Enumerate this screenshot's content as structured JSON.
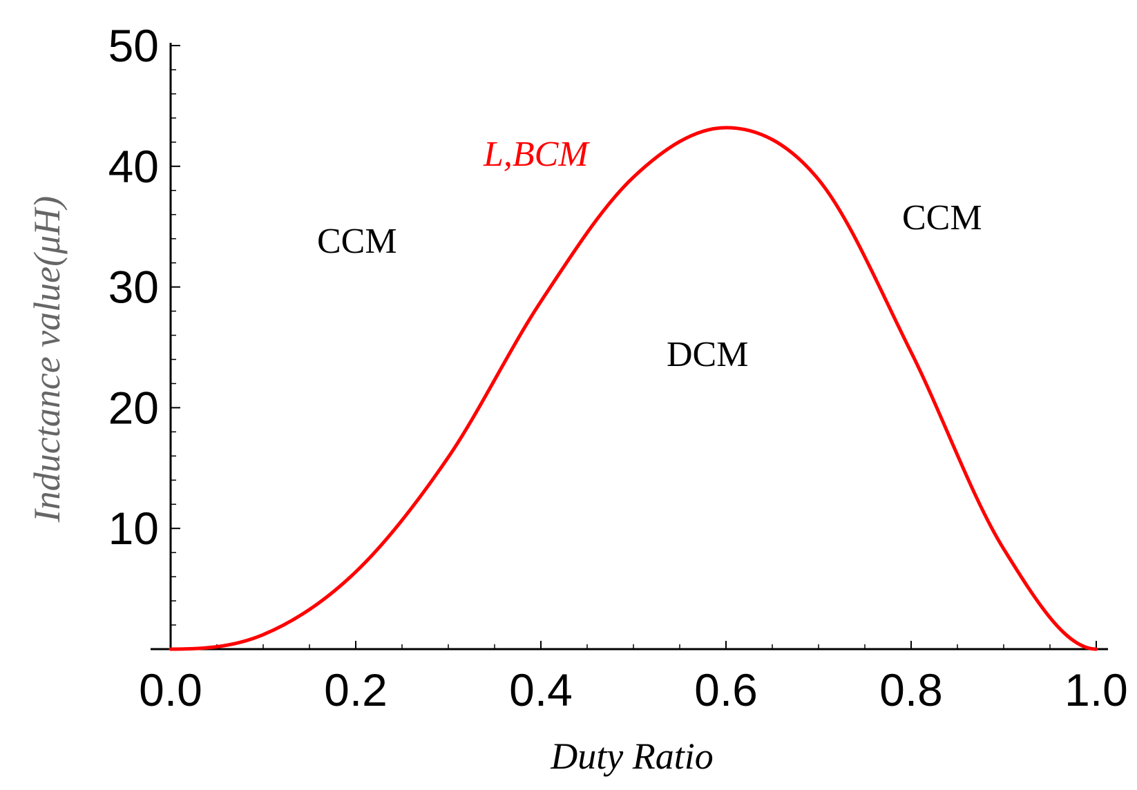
{
  "chart_data": {
    "type": "line",
    "title": "",
    "xlabel": "Duty Ratio",
    "ylabel": "Inductance value(μH)",
    "xlim": [
      0,
      1.0
    ],
    "ylim": [
      0,
      50
    ],
    "x_ticks": [
      "0.0",
      "0.2",
      "0.4",
      "0.6",
      "0.8",
      "1.0"
    ],
    "y_ticks": [
      "10",
      "20",
      "30",
      "40",
      "50"
    ],
    "grid": false,
    "series": [
      {
        "name": "L,BCM",
        "color": "#ff0000",
        "x": [
          0.0,
          0.1,
          0.2,
          0.3,
          0.4,
          0.5,
          0.6,
          0.7,
          0.8,
          0.9,
          1.0
        ],
        "values": [
          0.0,
          1.2,
          6.4,
          15.9,
          28.8,
          39.1,
          43.2,
          38.9,
          24.6,
          8.3,
          0.0
        ]
      }
    ],
    "annotations": [
      {
        "text": "CCM",
        "region": "left"
      },
      {
        "text": "CCM",
        "region": "right"
      },
      {
        "text": "DCM",
        "region": "under-curve"
      }
    ],
    "colors": {
      "curve": "#ff0000",
      "axis": "#000000",
      "ylabel": "#666666",
      "xlabel": "#000000"
    }
  }
}
